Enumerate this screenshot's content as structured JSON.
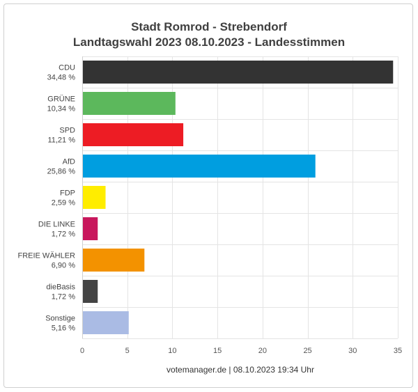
{
  "chart_data": {
    "type": "bar",
    "orientation": "horizontal",
    "title": "Stadt Romrod - Strebendorf",
    "subtitle": "Landtagswahl 2023 08.10.2023  - Landesstimmen",
    "categories": [
      "CDU",
      "GRÜNE",
      "SPD",
      "AfD",
      "FDP",
      "DIE LINKE",
      "FREIE WÄHLER",
      "dieBasis",
      "Sonstige"
    ],
    "value_labels": [
      "34,48 %",
      "10,34 %",
      "11,21 %",
      "25,86 %",
      "2,59 %",
      "1,72 %",
      "6,90 %",
      "1,72 %",
      "5,16 %"
    ],
    "values": [
      34.48,
      10.34,
      11.21,
      25.86,
      2.59,
      1.72,
      6.9,
      1.72,
      5.16
    ],
    "colors": [
      "#333333",
      "#5cb85c",
      "#ed1c24",
      "#009ee0",
      "#ffed00",
      "#c8175c",
      "#f39200",
      "#444444",
      "#aabbe4"
    ],
    "xlim": [
      0,
      35
    ],
    "xticks": [
      0,
      5,
      10,
      15,
      20,
      25,
      30,
      35
    ],
    "grid": true,
    "footer": "votemanager.de | 08.10.2023 19:34 Uhr"
  }
}
